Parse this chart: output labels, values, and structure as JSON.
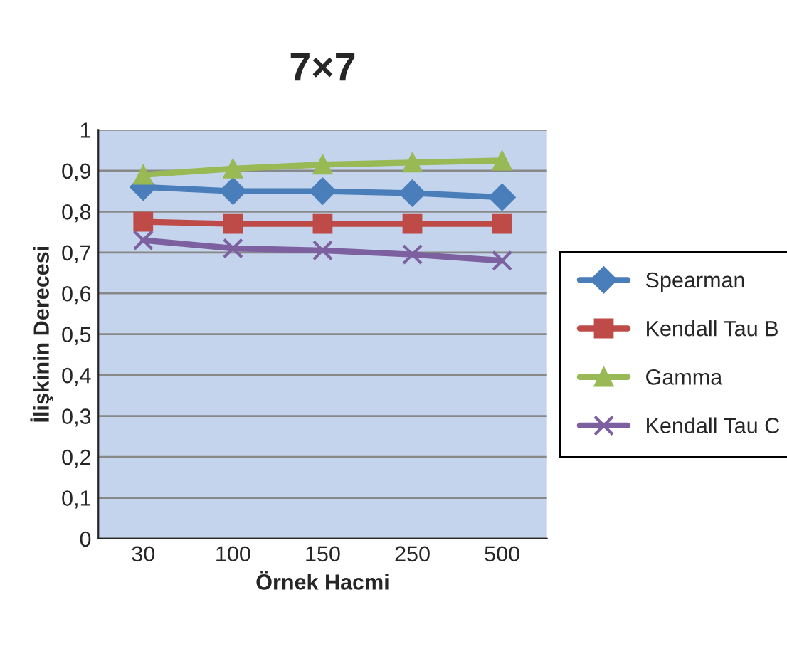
{
  "chart_data": {
    "type": "line",
    "title": "7×7",
    "xlabel": "Örnek Hacmi",
    "ylabel": "İlişkinin Derecesi",
    "categories": [
      "30",
      "100",
      "150",
      "250",
      "500"
    ],
    "series": [
      {
        "name": "Spearman",
        "color": "#4a7ebb",
        "marker": "diamond",
        "values": [
          0.86,
          0.85,
          0.85,
          0.845,
          0.835
        ]
      },
      {
        "name": "Kendall Tau B",
        "color": "#be4b48",
        "marker": "square",
        "values": [
          0.775,
          0.77,
          0.77,
          0.77,
          0.77
        ]
      },
      {
        "name": "Gamma",
        "color": "#98b954",
        "marker": "triangle",
        "values": [
          0.89,
          0.905,
          0.915,
          0.92,
          0.925
        ]
      },
      {
        "name": "Kendall Tau C",
        "color": "#7d60a0",
        "marker": "cross",
        "values": [
          0.73,
          0.71,
          0.705,
          0.695,
          0.68
        ]
      }
    ],
    "ylim": [
      0,
      1
    ],
    "yticks": [
      0,
      {
        "value": 0.1,
        "label": "0,1"
      },
      {
        "value": 0.2,
        "label": "0,2"
      },
      {
        "value": 0.3,
        "label": "0,3"
      },
      {
        "value": 0.4,
        "label": "0,4"
      },
      {
        "value": 0.5,
        "label": "0,5"
      },
      {
        "value": 0.6,
        "label": "0,6"
      },
      {
        "value": 0.7,
        "label": "0,7"
      },
      {
        "value": 0.8,
        "label": "0,8"
      },
      {
        "value": 0.9,
        "label": "0,9"
      },
      1
    ],
    "grid": "y",
    "legend": "right"
  }
}
